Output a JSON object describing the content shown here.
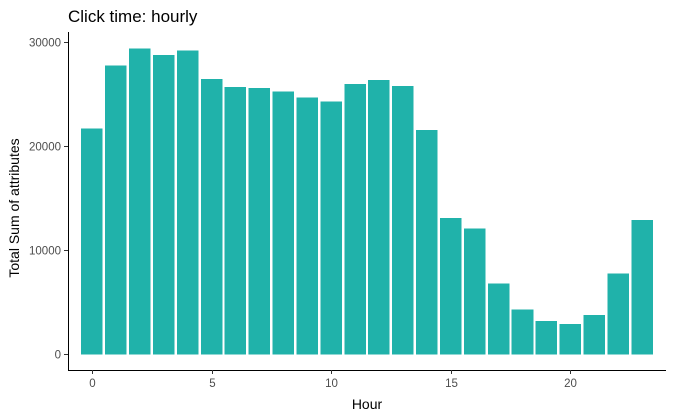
{
  "chart_data": {
    "type": "bar",
    "title": "Click time: hourly",
    "xlabel": "Hour",
    "ylabel": "Total Sum of attributes",
    "bar_color": "#20B2AA",
    "grid": false,
    "xlim": [
      -1.0,
      24.0
    ],
    "ylim": [
      -1500,
      31000
    ],
    "x_ticks": [
      0,
      5,
      10,
      15,
      20
    ],
    "x_tick_labels": [
      "0",
      "5",
      "10",
      "15",
      "20"
    ],
    "y_ticks": [
      0,
      10000,
      20000,
      30000
    ],
    "y_tick_labels": [
      "0",
      "10000",
      "20000",
      "30000"
    ],
    "x": [
      0,
      1,
      2,
      3,
      4,
      5,
      6,
      7,
      8,
      9,
      10,
      11,
      12,
      13,
      14,
      15,
      16,
      17,
      18,
      19,
      20,
      21,
      22,
      23
    ],
    "values": [
      21700,
      27800,
      29400,
      28800,
      29200,
      26500,
      25700,
      25600,
      25300,
      24700,
      24300,
      26000,
      26400,
      25800,
      21600,
      13100,
      12100,
      6800,
      4300,
      3200,
      2900,
      3800,
      7800,
      12900
    ]
  }
}
